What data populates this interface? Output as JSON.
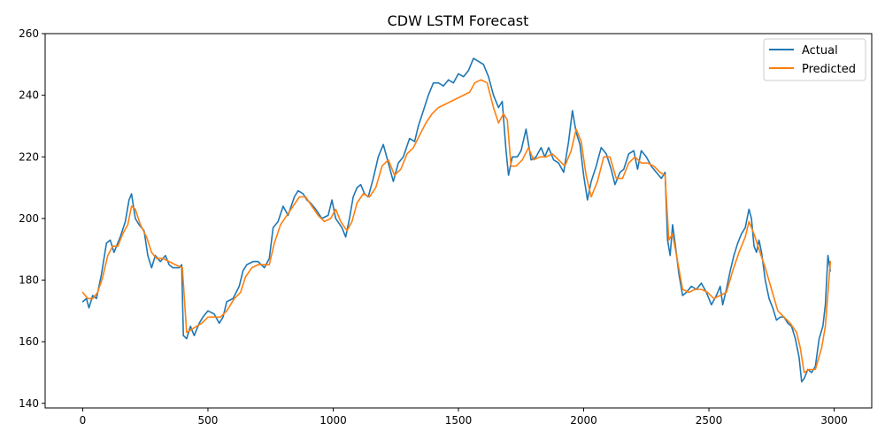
{
  "chart_data": {
    "type": "line",
    "title": "CDW LSTM Forecast",
    "xlabel": "",
    "ylabel": "",
    "xlim": [
      -150,
      3150
    ],
    "ylim": [
      138.5,
      260
    ],
    "xticks": [
      0,
      500,
      1000,
      1500,
      2000,
      2500,
      3000
    ],
    "yticks": [
      140,
      160,
      180,
      200,
      220,
      240,
      260
    ],
    "grid": false,
    "legend_position": "top-right",
    "series": [
      {
        "name": "Actual",
        "color": "#1f77b4",
        "points": [
          [
            0,
            173
          ],
          [
            15,
            174
          ],
          [
            25,
            171
          ],
          [
            40,
            175
          ],
          [
            55,
            174
          ],
          [
            75,
            182
          ],
          [
            95,
            192
          ],
          [
            110,
            193
          ],
          [
            125,
            189
          ],
          [
            150,
            194
          ],
          [
            170,
            199
          ],
          [
            185,
            206
          ],
          [
            195,
            208
          ],
          [
            210,
            200
          ],
          [
            225,
            198
          ],
          [
            245,
            196
          ],
          [
            260,
            188
          ],
          [
            275,
            184
          ],
          [
            290,
            188
          ],
          [
            310,
            186
          ],
          [
            330,
            188
          ],
          [
            345,
            185
          ],
          [
            360,
            184
          ],
          [
            385,
            184
          ],
          [
            395,
            185
          ],
          [
            402,
            162
          ],
          [
            415,
            161
          ],
          [
            430,
            165
          ],
          [
            445,
            162
          ],
          [
            465,
            166
          ],
          [
            480,
            168
          ],
          [
            500,
            170
          ],
          [
            525,
            169
          ],
          [
            545,
            166
          ],
          [
            560,
            168
          ],
          [
            575,
            173
          ],
          [
            600,
            174
          ],
          [
            625,
            178
          ],
          [
            640,
            183
          ],
          [
            655,
            185
          ],
          [
            680,
            186
          ],
          [
            700,
            186
          ],
          [
            725,
            184
          ],
          [
            745,
            187
          ],
          [
            760,
            197
          ],
          [
            780,
            199
          ],
          [
            800,
            204
          ],
          [
            820,
            201
          ],
          [
            845,
            207
          ],
          [
            860,
            209
          ],
          [
            880,
            208
          ],
          [
            895,
            206
          ],
          [
            910,
            205
          ],
          [
            930,
            203
          ],
          [
            955,
            200
          ],
          [
            980,
            201
          ],
          [
            995,
            206
          ],
          [
            1010,
            200
          ],
          [
            1035,
            197
          ],
          [
            1050,
            194
          ],
          [
            1065,
            200
          ],
          [
            1080,
            207
          ],
          [
            1095,
            210
          ],
          [
            1110,
            211
          ],
          [
            1125,
            208
          ],
          [
            1140,
            207
          ],
          [
            1160,
            213
          ],
          [
            1180,
            220
          ],
          [
            1200,
            224
          ],
          [
            1220,
            218
          ],
          [
            1240,
            212
          ],
          [
            1260,
            218
          ],
          [
            1280,
            220
          ],
          [
            1305,
            226
          ],
          [
            1325,
            225
          ],
          [
            1340,
            230
          ],
          [
            1360,
            235
          ],
          [
            1380,
            240
          ],
          [
            1400,
            244
          ],
          [
            1420,
            244
          ],
          [
            1440,
            243
          ],
          [
            1460,
            245
          ],
          [
            1480,
            244
          ],
          [
            1500,
            247
          ],
          [
            1520,
            246
          ],
          [
            1540,
            248
          ],
          [
            1560,
            252
          ],
          [
            1580,
            251
          ],
          [
            1600,
            250
          ],
          [
            1620,
            246
          ],
          [
            1640,
            240
          ],
          [
            1660,
            236
          ],
          [
            1675,
            238
          ],
          [
            1690,
            222
          ],
          [
            1700,
            214
          ],
          [
            1715,
            220
          ],
          [
            1735,
            220
          ],
          [
            1750,
            222
          ],
          [
            1770,
            229
          ],
          [
            1790,
            219
          ],
          [
            1810,
            220
          ],
          [
            1830,
            223
          ],
          [
            1845,
            220
          ],
          [
            1860,
            223
          ],
          [
            1880,
            219
          ],
          [
            1900,
            218
          ],
          [
            1920,
            215
          ],
          [
            1940,
            225
          ],
          [
            1955,
            235
          ],
          [
            1970,
            228
          ],
          [
            1985,
            224
          ],
          [
            2000,
            214
          ],
          [
            2015,
            206
          ],
          [
            2030,
            212
          ],
          [
            2050,
            217
          ],
          [
            2070,
            223
          ],
          [
            2090,
            221
          ],
          [
            2110,
            216
          ],
          [
            2125,
            211
          ],
          [
            2145,
            215
          ],
          [
            2160,
            216
          ],
          [
            2180,
            221
          ],
          [
            2200,
            222
          ],
          [
            2215,
            216
          ],
          [
            2230,
            222
          ],
          [
            2250,
            220
          ],
          [
            2270,
            217
          ],
          [
            2290,
            215
          ],
          [
            2310,
            213
          ],
          [
            2325,
            215
          ],
          [
            2335,
            193
          ],
          [
            2345,
            188
          ],
          [
            2355,
            198
          ],
          [
            2365,
            192
          ],
          [
            2380,
            182
          ],
          [
            2395,
            175
          ],
          [
            2410,
            176
          ],
          [
            2430,
            178
          ],
          [
            2450,
            177
          ],
          [
            2470,
            179
          ],
          [
            2490,
            176
          ],
          [
            2510,
            172
          ],
          [
            2530,
            175
          ],
          [
            2545,
            178
          ],
          [
            2555,
            172
          ],
          [
            2570,
            177
          ],
          [
            2585,
            183
          ],
          [
            2600,
            188
          ],
          [
            2615,
            192
          ],
          [
            2630,
            195
          ],
          [
            2645,
            197
          ],
          [
            2660,
            203
          ],
          [
            2670,
            200
          ],
          [
            2680,
            191
          ],
          [
            2690,
            189
          ],
          [
            2700,
            193
          ],
          [
            2710,
            189
          ],
          [
            2725,
            180
          ],
          [
            2740,
            174
          ],
          [
            2755,
            171
          ],
          [
            2770,
            167
          ],
          [
            2785,
            168
          ],
          [
            2800,
            168
          ],
          [
            2815,
            166
          ],
          [
            2830,
            165
          ],
          [
            2845,
            161
          ],
          [
            2860,
            155
          ],
          [
            2870,
            147
          ],
          [
            2880,
            148
          ],
          [
            2895,
            151
          ],
          [
            2910,
            150
          ],
          [
            2925,
            152
          ],
          [
            2940,
            161
          ],
          [
            2955,
            165
          ],
          [
            2965,
            172
          ],
          [
            2975,
            188
          ],
          [
            2985,
            183
          ]
        ]
      },
      {
        "name": "Predicted",
        "color": "#ff7f0e",
        "points": [
          [
            0,
            176
          ],
          [
            20,
            174
          ],
          [
            40,
            174
          ],
          [
            60,
            176
          ],
          [
            80,
            181
          ],
          [
            100,
            188
          ],
          [
            120,
            191
          ],
          [
            140,
            191
          ],
          [
            160,
            195
          ],
          [
            180,
            198
          ],
          [
            195,
            204
          ],
          [
            210,
            203
          ],
          [
            230,
            198
          ],
          [
            255,
            194
          ],
          [
            275,
            189
          ],
          [
            295,
            187
          ],
          [
            320,
            187
          ],
          [
            345,
            186
          ],
          [
            370,
            185
          ],
          [
            398,
            184
          ],
          [
            405,
            175
          ],
          [
            415,
            163
          ],
          [
            435,
            164
          ],
          [
            455,
            165
          ],
          [
            475,
            166
          ],
          [
            500,
            168
          ],
          [
            525,
            168
          ],
          [
            550,
            168
          ],
          [
            575,
            170
          ],
          [
            605,
            174
          ],
          [
            630,
            176
          ],
          [
            650,
            181
          ],
          [
            675,
            184
          ],
          [
            700,
            185
          ],
          [
            725,
            185
          ],
          [
            745,
            185
          ],
          [
            765,
            192
          ],
          [
            790,
            198
          ],
          [
            815,
            201
          ],
          [
            840,
            204
          ],
          [
            865,
            207
          ],
          [
            890,
            207
          ],
          [
            915,
            204
          ],
          [
            940,
            201
          ],
          [
            965,
            199
          ],
          [
            990,
            200
          ],
          [
            1010,
            203
          ],
          [
            1030,
            199
          ],
          [
            1055,
            196
          ],
          [
            1075,
            199
          ],
          [
            1095,
            205
          ],
          [
            1120,
            208
          ],
          [
            1145,
            207
          ],
          [
            1170,
            210
          ],
          [
            1195,
            217
          ],
          [
            1220,
            219
          ],
          [
            1245,
            214
          ],
          [
            1270,
            216
          ],
          [
            1295,
            221
          ],
          [
            1320,
            223
          ],
          [
            1345,
            227
          ],
          [
            1370,
            231
          ],
          [
            1395,
            234
          ],
          [
            1420,
            236
          ],
          [
            1445,
            237
          ],
          [
            1470,
            238
          ],
          [
            1495,
            239
          ],
          [
            1520,
            240
          ],
          [
            1545,
            241
          ],
          [
            1565,
            244
          ],
          [
            1590,
            245
          ],
          [
            1615,
            244
          ],
          [
            1640,
            236
          ],
          [
            1660,
            231
          ],
          [
            1680,
            234
          ],
          [
            1695,
            232
          ],
          [
            1710,
            217
          ],
          [
            1730,
            217
          ],
          [
            1755,
            219
          ],
          [
            1780,
            223
          ],
          [
            1800,
            219
          ],
          [
            1825,
            220
          ],
          [
            1850,
            220
          ],
          [
            1875,
            221
          ],
          [
            1900,
            219
          ],
          [
            1925,
            217
          ],
          [
            1950,
            222
          ],
          [
            1970,
            229
          ],
          [
            1990,
            225
          ],
          [
            2010,
            214
          ],
          [
            2030,
            207
          ],
          [
            2055,
            212
          ],
          [
            2080,
            220
          ],
          [
            2105,
            220
          ],
          [
            2130,
            213
          ],
          [
            2155,
            213
          ],
          [
            2180,
            218
          ],
          [
            2205,
            220
          ],
          [
            2230,
            218
          ],
          [
            2255,
            218
          ],
          [
            2280,
            217
          ],
          [
            2305,
            215
          ],
          [
            2325,
            214
          ],
          [
            2340,
            193
          ],
          [
            2355,
            195
          ],
          [
            2375,
            186
          ],
          [
            2395,
            177
          ],
          [
            2420,
            176
          ],
          [
            2445,
            177
          ],
          [
            2470,
            177
          ],
          [
            2495,
            176
          ],
          [
            2520,
            174
          ],
          [
            2545,
            175
          ],
          [
            2570,
            176
          ],
          [
            2595,
            183
          ],
          [
            2620,
            189
          ],
          [
            2645,
            194
          ],
          [
            2660,
            199
          ],
          [
            2680,
            195
          ],
          [
            2700,
            190
          ],
          [
            2725,
            184
          ],
          [
            2750,
            177
          ],
          [
            2775,
            170
          ],
          [
            2800,
            168
          ],
          [
            2825,
            166
          ],
          [
            2850,
            163
          ],
          [
            2865,
            158
          ],
          [
            2880,
            150
          ],
          [
            2900,
            151
          ],
          [
            2925,
            151
          ],
          [
            2950,
            158
          ],
          [
            2965,
            165
          ],
          [
            2985,
            186
          ]
        ]
      }
    ]
  }
}
